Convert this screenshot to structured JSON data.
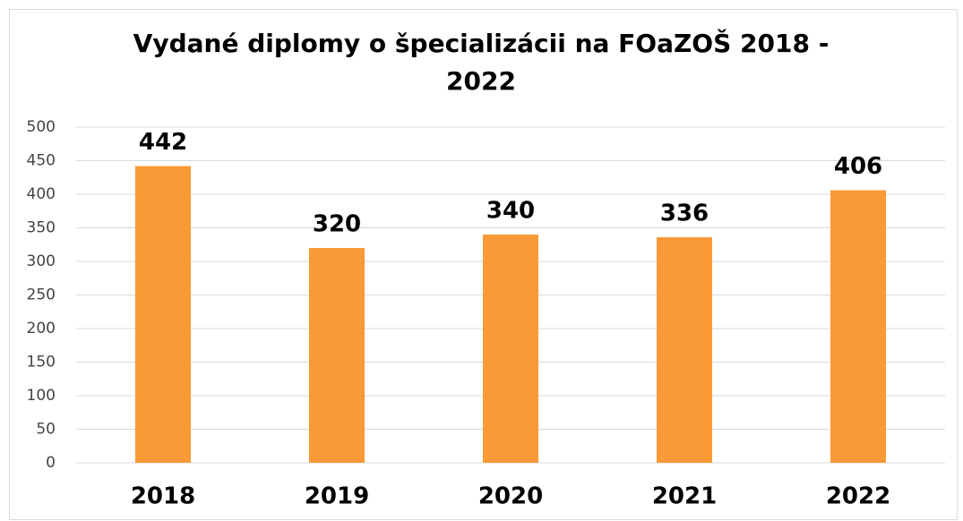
{
  "chart_data": {
    "type": "bar",
    "title": "Vydané diplomy o špecializácii na FOaZOŠ 2018 - 2022",
    "categories": [
      "2018",
      "2019",
      "2020",
      "2021",
      "2022"
    ],
    "values": [
      442,
      320,
      340,
      336,
      406
    ],
    "color": "#f99a36",
    "ylim": [
      0,
      500
    ],
    "yticks": [
      0,
      50,
      100,
      150,
      200,
      250,
      300,
      350,
      400,
      450,
      500
    ],
    "grid": true
  }
}
